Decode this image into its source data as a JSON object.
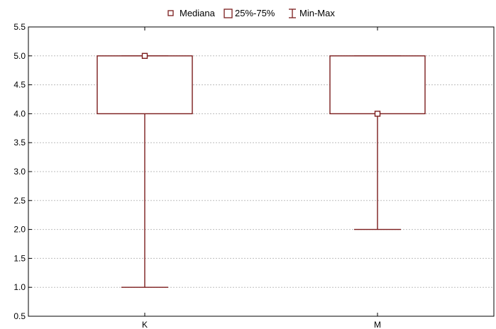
{
  "chart_data": {
    "type": "box",
    "title": "",
    "xlabel": "",
    "ylabel": "",
    "ylim": [
      0.5,
      5.5
    ],
    "yticks": [
      0.5,
      1.0,
      1.5,
      2.0,
      2.5,
      3.0,
      3.5,
      4.0,
      4.5,
      5.0,
      5.5
    ],
    "ytick_labels": [
      "0.5",
      "1.0",
      "1.5",
      "2.0",
      "2.5",
      "3.0",
      "3.5",
      "4.0",
      "4.5",
      "5.0",
      "5.5"
    ],
    "grid": true,
    "legend_position": "top-center",
    "legend": {
      "median": "Mediana",
      "box": "25%-75%",
      "whisker": "Min-Max"
    },
    "categories": [
      "K",
      "M"
    ],
    "boxes": [
      {
        "category": "K",
        "min": 1.0,
        "q1": 4.0,
        "median": 5.0,
        "q3": 5.0,
        "max": 5.0
      },
      {
        "category": "M",
        "min": 2.0,
        "q1": 4.0,
        "median": 4.0,
        "q3": 5.0,
        "max": 5.0
      }
    ],
    "color": "#7b1c1c"
  }
}
